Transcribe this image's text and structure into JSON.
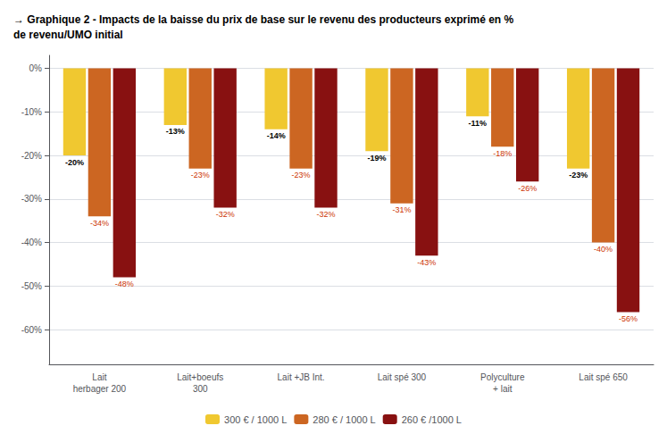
{
  "chart_data": {
    "type": "bar",
    "title": "→ Graphique 2 - Impacts de la baisse du prix de base sur le revenu des producteurs exprimé en %\nde revenu/UMO initial",
    "categories": [
      "Lait\nherbager 200",
      "Lait+boeufs\n300",
      "Lait +JB Int.",
      "Lait spé 300",
      "Polyculture\n+ lait",
      "Lait spé 650"
    ],
    "series": [
      {
        "name": "300 € / 1000 L",
        "color": "#F0C830",
        "values": [
          -20,
          -13,
          -14,
          -19,
          -11,
          -23
        ],
        "value_labels": [
          "-20%",
          "-13%",
          "-14%",
          "-19%",
          "-11%",
          "-23%"
        ]
      },
      {
        "name": "280 € / 1000 L",
        "color": "#CC6622",
        "values": [
          -34,
          -23,
          -23,
          -31,
          -18,
          -40
        ],
        "value_labels": [
          "-34%",
          "-23%",
          "-23%",
          "-31%",
          "-18%",
          "-40%"
        ]
      },
      {
        "name": "260 € /1000 L",
        "color": "#881111",
        "values": [
          -48,
          -32,
          -32,
          -43,
          -26,
          -56
        ],
        "value_labels": [
          "-48%",
          "-32%",
          "-32%",
          "-43%",
          "-26%",
          "-56%"
        ]
      }
    ],
    "ylim": [
      -68,
      3
    ],
    "yticks": [
      {
        "value": 0,
        "label": "0%"
      },
      {
        "value": -10,
        "label": "-10%"
      },
      {
        "value": -20,
        "label": "-20%"
      },
      {
        "value": -30,
        "label": "-30%"
      },
      {
        "value": -40,
        "label": "-40%"
      },
      {
        "value": -50,
        "label": "-50%"
      },
      {
        "value": -60,
        "label": "-60%"
      }
    ],
    "grid": true,
    "legend": "bottom",
    "data_labels": true
  }
}
